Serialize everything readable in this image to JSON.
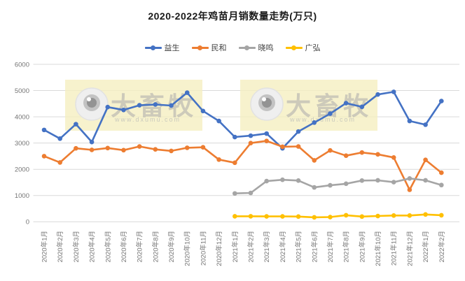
{
  "page": {
    "title": "2020-2022年鸡苗月销数量走势(万只)"
  },
  "chart_data": {
    "type": "line",
    "title": "2020-2022年鸡苗月销数量走势(万只)",
    "categories": [
      "2020年1月",
      "2020年2月",
      "2020年3月",
      "2020年4月",
      "2020年5月",
      "2020年6月",
      "2020年7月",
      "2020年8月",
      "2020年9月",
      "2020年10月",
      "2020年11月",
      "2020年12月",
      "2021年1月",
      "2021年2月",
      "2021年3月",
      "2021年4月",
      "2021年5月",
      "2021年6月",
      "2021年7月",
      "2021年8月",
      "2021年9月",
      "2021年10月",
      "2021年11月",
      "2021年12月",
      "2022年1月",
      "2022年2月"
    ],
    "series": [
      {
        "name": "益生",
        "color": "#4472C4",
        "start_index": 0,
        "values": [
          3500,
          3170,
          3720,
          3040,
          4370,
          4260,
          4440,
          4470,
          4430,
          4920,
          4220,
          3840,
          3230,
          3280,
          3360,
          2800,
          3440,
          3780,
          4120,
          4520,
          4380,
          4850,
          4950,
          3840,
          3700,
          4600
        ]
      },
      {
        "name": "民和",
        "color": "#ED7D31",
        "start_index": 0,
        "values": [
          2500,
          2260,
          2800,
          2740,
          2810,
          2730,
          2870,
          2760,
          2700,
          2820,
          2840,
          2370,
          2250,
          3000,
          3080,
          2860,
          2870,
          2340,
          2720,
          2520,
          2640,
          2570,
          2450,
          1220,
          2360,
          1870
        ]
      },
      {
        "name": "晓鸣",
        "color": "#A5A5A5",
        "start_index": 12,
        "values": [
          1080,
          1100,
          1550,
          1600,
          1570,
          1310,
          1390,
          1450,
          1570,
          1580,
          1510,
          1650,
          1580,
          1400
        ]
      },
      {
        "name": "广弘",
        "color": "#FFC000",
        "start_index": 12,
        "values": [
          210,
          210,
          205,
          205,
          200,
          170,
          180,
          250,
          200,
          220,
          240,
          240,
          280,
          250
        ]
      }
    ],
    "ylim": [
      0,
      6000
    ],
    "yticks": [
      0,
      1000,
      2000,
      3000,
      4000,
      5000,
      6000
    ],
    "grid": true,
    "legend_position": "top",
    "watermark": {
      "brand": "大畜牧",
      "url": "www.dxumu.com"
    }
  },
  "colors": {
    "grid": "#D9D9D9",
    "axis_text": "#757575",
    "title_text": "#1a1a1a",
    "watermark_bg": "#F5EFC1",
    "watermark_text": "#ABABAB",
    "watermark_url": "#C9C9BC"
  }
}
